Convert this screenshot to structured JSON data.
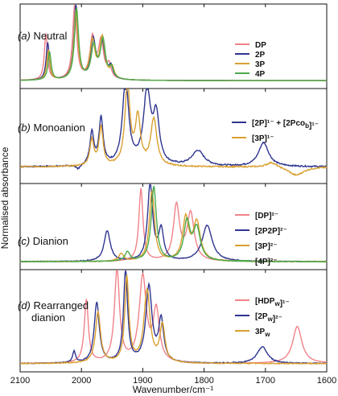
{
  "chart_data": {
    "type": "line",
    "xlabel": "Wavenumber/cm⁻¹",
    "ylabel": "Normalised absorbance",
    "xlim": [
      2100,
      1600
    ],
    "x_ticks": [
      "2100",
      "2000",
      "1900",
      "1800",
      "1700",
      "1600"
    ],
    "colors": {
      "pink": "#f0828a",
      "navy": "#2f3590",
      "orange": "#d9a030",
      "green": "#4caa4c"
    },
    "panels": [
      {
        "letter": "(a)",
        "label": "Neutral",
        "legend": [
          "DP",
          "2P",
          "3P",
          "4P"
        ],
        "legend_colors": [
          "#f0828a",
          "#2f3590",
          "#d9a030",
          "#4caa4c"
        ],
        "series": [
          {
            "name": "DP",
            "color": "#f0828a",
            "baseline": 0.02,
            "noise": 0.0,
            "peaks": [
              [
                2058,
                0.62,
                3
              ],
              [
                2011,
                1.0,
                4
              ],
              [
                1982,
                0.55,
                5
              ],
              [
                1968,
                0.5,
                5
              ],
              [
                1955,
                0.18,
                4
              ]
            ]
          },
          {
            "name": "2P",
            "color": "#2f3590",
            "baseline": 0.02,
            "noise": 0.0,
            "peaks": [
              [
                2055,
                0.5,
                3
              ],
              [
                2009,
                1.0,
                4
              ],
              [
                1981,
                0.52,
                5
              ],
              [
                1966,
                0.48,
                5
              ],
              [
                1952,
                0.16,
                4
              ]
            ]
          },
          {
            "name": "3P",
            "color": "#d9a030",
            "baseline": 0.02,
            "noise": 0.0,
            "peaks": [
              [
                2054,
                0.4,
                3
              ],
              [
                2009,
                0.92,
                4
              ],
              [
                1982,
                0.5,
                5
              ],
              [
                1966,
                0.55,
                5
              ],
              [
                1950,
                0.15,
                4
              ]
            ]
          },
          {
            "name": "4P",
            "color": "#4caa4c",
            "baseline": 0.02,
            "noise": 0.0,
            "peaks": [
              [
                2052,
                0.38,
                3
              ],
              [
                2008,
                0.95,
                4
              ],
              [
                1980,
                0.44,
                5
              ],
              [
                1965,
                0.52,
                5
              ],
              [
                1951,
                0.14,
                4
              ]
            ]
          }
        ]
      },
      {
        "letter": "(b)",
        "label": "Monoanion",
        "legend": [
          "[2P]¹⁻ + [2Pco_b]¹⁻",
          "[3P]¹⁻"
        ],
        "legend_colors": [
          "#2f3590",
          "#d9a030"
        ],
        "series": [
          {
            "name": "[2P]¹⁻ + [2Pco_b]¹⁻",
            "color": "#2f3590",
            "baseline": 0.12,
            "noise": 0.015,
            "peaks": [
              [
                2005,
                -0.05,
                4
              ],
              [
                1983,
                0.38,
                4
              ],
              [
                1968,
                0.55,
                4
              ],
              [
                1928,
                1.0,
                6
              ],
              [
                1893,
                0.85,
                7
              ],
              [
                1878,
                0.55,
                6
              ],
              [
                1810,
                0.18,
                12
              ],
              [
                1703,
                0.28,
                10
              ]
            ]
          },
          {
            "name": "[3P]¹⁻",
            "color": "#d9a030",
            "baseline": 0.12,
            "noise": 0.015,
            "peaks": [
              [
                1983,
                0.3,
                4
              ],
              [
                1968,
                0.45,
                4
              ],
              [
                1925,
                0.95,
                5
              ],
              [
                1908,
                0.55,
                5
              ],
              [
                1882,
                0.55,
                6
              ],
              [
                1690,
                0.06,
                10
              ],
              [
                1650,
                -0.1,
                15
              ]
            ]
          }
        ]
      },
      {
        "letter": "(c)",
        "label": "Dianion",
        "legend": [
          "[DP]²⁻",
          "[2P2P]²⁻",
          "[3P]²⁻",
          "[4P]²⁻"
        ],
        "legend_colors": [
          "#f0828a",
          "#2f3590",
          "#d9a030",
          "#4caa4c"
        ],
        "series": [
          {
            "name": "[DP]²⁻",
            "color": "#f0828a",
            "baseline": 0.02,
            "noise": 0.0,
            "peaks": [
              [
                1903,
                0.95,
                4
              ],
              [
                1845,
                0.72,
                6
              ],
              [
                1822,
                0.62,
                7
              ]
            ]
          },
          {
            "name": "[2P2P]²⁻",
            "color": "#2f3590",
            "baseline": 0.02,
            "noise": 0.01,
            "peaks": [
              [
                1958,
                0.4,
                6
              ],
              [
                1888,
                1.0,
                5
              ],
              [
                1870,
                0.4,
                5
              ],
              [
                1795,
                0.47,
                10
              ]
            ]
          },
          {
            "name": "[3P]²⁻",
            "color": "#d9a030",
            "baseline": 0.02,
            "noise": 0.01,
            "peaks": [
              [
                1935,
                0.1,
                5
              ],
              [
                1885,
                0.92,
                5
              ],
              [
                1830,
                0.55,
                6
              ],
              [
                1812,
                0.5,
                7
              ]
            ]
          },
          {
            "name": "[4P]²⁻",
            "color": "#4caa4c",
            "baseline": 0.02,
            "noise": 0.01,
            "peaks": [
              [
                1925,
                0.12,
                5
              ],
              [
                1882,
                0.98,
                5
              ],
              [
                1828,
                0.5,
                6
              ],
              [
                1812,
                0.42,
                7
              ]
            ]
          }
        ]
      },
      {
        "letter": "(d)",
        "label": "Rearranged",
        "label2": "dianion",
        "legend": [
          "[HDP_w]¹⁻",
          "[2P_w]²⁻",
          "3P_w"
        ],
        "legend_colors": [
          "#f0828a",
          "#2f3590",
          "#d9a030"
        ],
        "series": [
          {
            "name": "[HDP_w]¹⁻",
            "color": "#f0828a",
            "baseline": 0.02,
            "noise": 0.0,
            "peaks": [
              [
                1992,
                0.68,
                4
              ],
              [
                1942,
                1.0,
                5
              ],
              [
                1900,
                0.92,
                7
              ],
              [
                1878,
                0.55,
                6
              ],
              [
                1648,
                0.4,
                9
              ]
            ]
          },
          {
            "name": "[2P_w]²⁻",
            "color": "#2f3590",
            "baseline": 0.02,
            "noise": 0.01,
            "peaks": [
              [
                2012,
                0.12,
                3
              ],
              [
                1975,
                0.65,
                5
              ],
              [
                1928,
                1.0,
                4
              ],
              [
                1890,
                0.82,
                6
              ],
              [
                1870,
                0.45,
                5
              ],
              [
                1705,
                0.18,
                10
              ]
            ]
          },
          {
            "name": "3P_w",
            "color": "#d9a030",
            "baseline": 0.02,
            "noise": 0.01,
            "peaks": [
              [
                1973,
                0.55,
                5
              ],
              [
                1926,
                0.92,
                4
              ],
              [
                1893,
                0.78,
                6
              ],
              [
                1868,
                0.4,
                5
              ]
            ]
          }
        ]
      }
    ]
  }
}
